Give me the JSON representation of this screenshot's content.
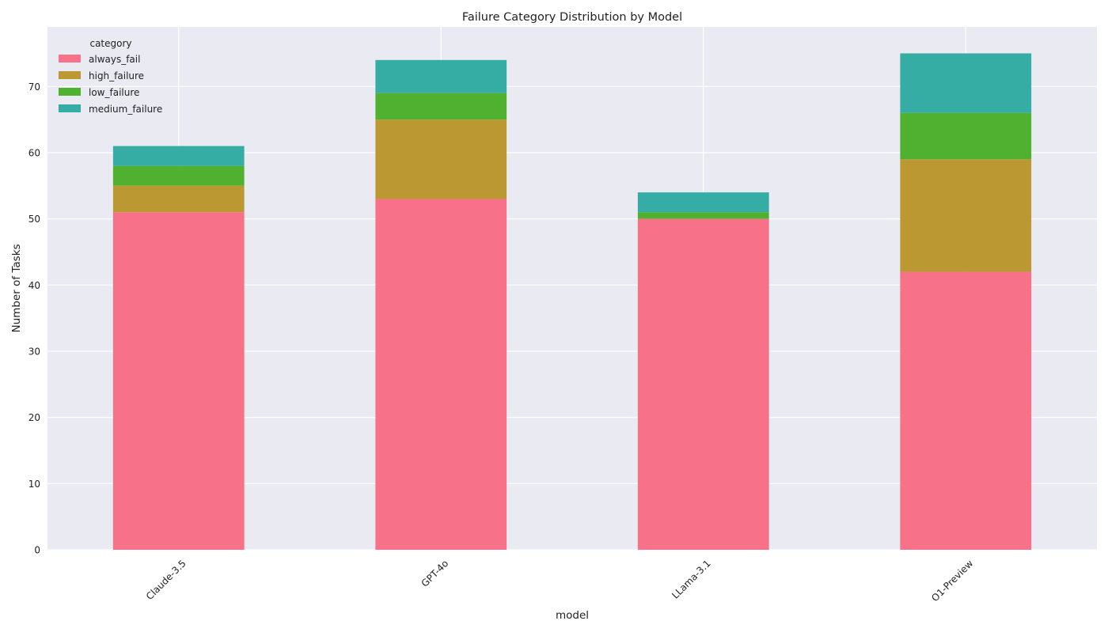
{
  "chart_data": {
    "type": "bar",
    "stacked": true,
    "title": "Failure Category Distribution by Model",
    "xlabel": "model",
    "ylabel": "Number of Tasks",
    "categories": [
      "Claude-3.5",
      "GPT-4o",
      "LLama-3.1",
      "O1-Preview"
    ],
    "series": [
      {
        "name": "always_fail",
        "color": "#f77189",
        "values": [
          51,
          53,
          50,
          42
        ]
      },
      {
        "name": "high_failure",
        "color": "#bb9832",
        "values": [
          4,
          12,
          0,
          17
        ]
      },
      {
        "name": "low_failure",
        "color": "#50b131",
        "values": [
          3,
          4,
          1,
          7
        ]
      },
      {
        "name": "medium_failure",
        "color": "#36ada4",
        "values": [
          3,
          5,
          3,
          9
        ]
      }
    ],
    "ylim": [
      0,
      79
    ],
    "yticks": [
      0,
      10,
      20,
      30,
      40,
      50,
      60,
      70
    ],
    "grid": true,
    "background_color": "#eaeaf2",
    "legend": {
      "title": "category",
      "placement": "top-left"
    }
  }
}
